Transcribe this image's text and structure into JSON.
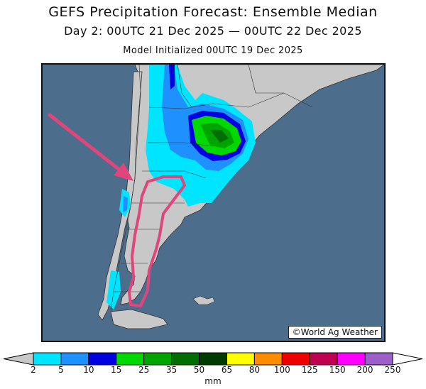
{
  "title": "GEFS Precipitation Forecast: Ensemble Median",
  "valid_period": "Day 2: 00UTC 21 Dec 2025 — 00UTC 22 Dec 2025",
  "init_time": "Model Initialized 00UTC 19 Dec 2025",
  "credit": "©World Ag Weather",
  "region": "Southern South America (Argentina, Chile)",
  "annotations": {
    "arrow_color": "#e0457b",
    "outline_color": "#e0457b",
    "outline_area": "central/southern Argentina (Patagonia)"
  },
  "legend": {
    "units": "mm",
    "below_min_color": "#c8c8c8",
    "above_max_color": "#ffffff",
    "bins": [
      {
        "label": "2",
        "color": "#00e5ff"
      },
      {
        "label": "5",
        "color": "#1e90ff"
      },
      {
        "label": "10",
        "color": "#0000e0"
      },
      {
        "label": "15",
        "color": "#00d800"
      },
      {
        "label": "25",
        "color": "#00a400"
      },
      {
        "label": "35",
        "color": "#006e00"
      },
      {
        "label": "50",
        "color": "#003c00"
      },
      {
        "label": "65",
        "color": "#ffff00"
      },
      {
        "label": "80",
        "color": "#ff8c00"
      },
      {
        "label": "100",
        "color": "#ee0000"
      },
      {
        "label": "125",
        "color": "#c00050"
      },
      {
        "label": "150",
        "color": "#ff00ff"
      },
      {
        "label": "200",
        "color": "#9a5fc8"
      },
      {
        "label": "250",
        "color": ""
      }
    ]
  },
  "colors": {
    "ocean": "#4d6d8d",
    "land": "#c8c8c8",
    "border": "#333333"
  }
}
